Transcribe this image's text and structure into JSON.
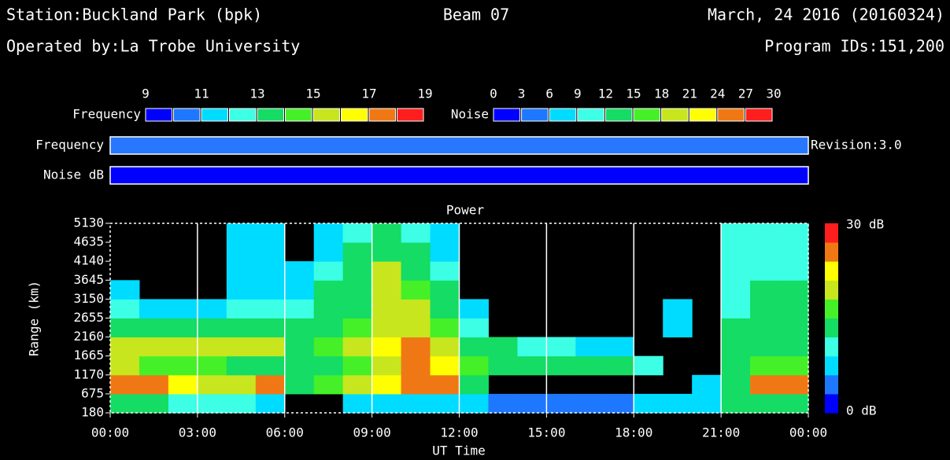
{
  "header": {
    "station": "Station:Buckland Park (bpk)",
    "beam": "Beam 07",
    "date": "March, 24 2016 (20160324)",
    "operator": "Operated by:La Trobe University",
    "programs": "Program IDs:151,200",
    "revision": "Revision:3.0"
  },
  "scales": {
    "colors": [
      "#0000ff",
      "#1e78ff",
      "#00dcff",
      "#3cffe6",
      "#14dc64",
      "#46f028",
      "#c8e61e",
      "#ffff00",
      "#f07814",
      "#ff1e1e"
    ],
    "frequency": {
      "name": "Frequency",
      "ticks": [
        9,
        11,
        13,
        15,
        17,
        19
      ]
    },
    "noise": {
      "name": "Noise",
      "ticks": [
        0,
        3,
        6,
        9,
        12,
        15,
        18,
        21,
        24,
        27,
        30
      ]
    }
  },
  "bars": [
    {
      "name": "Frequency",
      "color": "#2878ff"
    },
    {
      "name": "Noise dB",
      "color": "#0000ff"
    }
  ],
  "chart_data": {
    "type": "heatmap",
    "title": "Power",
    "xlabel": "UT Time",
    "ylabel": "Range (km)",
    "xlim": [
      0,
      24
    ],
    "ylim": [
      180,
      5130
    ],
    "xticks": [
      {
        "value": 0,
        "label": "00:00"
      },
      {
        "value": 3,
        "label": "03:00"
      },
      {
        "value": 6,
        "label": "06:00"
      },
      {
        "value": 9,
        "label": "09:00"
      },
      {
        "value": 12,
        "label": "12:00"
      },
      {
        "value": 15,
        "label": "15:00"
      },
      {
        "value": 18,
        "label": "18:00"
      },
      {
        "value": 21,
        "label": "21:00"
      },
      {
        "value": 24,
        "label": "00:00"
      }
    ],
    "yticks": [
      180,
      675,
      1170,
      1665,
      2160,
      2655,
      3150,
      3645,
      4140,
      4635,
      5130
    ],
    "grid": true,
    "xbins": [
      0,
      1,
      2,
      3,
      4,
      5,
      6,
      7,
      8,
      9,
      10,
      11,
      12,
      13,
      14,
      15,
      16,
      17,
      18,
      19,
      20,
      21,
      22,
      23,
      24
    ],
    "ybins": [
      180,
      675,
      1170,
      1665,
      2160,
      2655,
      3150,
      3645,
      4140,
      4635,
      5130
    ],
    "zlim": [
      0,
      30
    ],
    "zticks": [
      {
        "value": 30,
        "label": "30 dB"
      },
      {
        "value": 0,
        "label": "0 dB"
      }
    ],
    "z": [
      [
        12,
        12,
        10,
        10,
        10,
        8,
        null,
        null,
        6,
        6,
        6,
        6,
        6,
        5,
        5,
        5,
        5,
        5,
        6,
        6,
        8,
        12,
        14,
        12
      ],
      [
        26,
        24,
        22,
        20,
        20,
        24,
        14,
        16,
        18,
        22,
        24,
        26,
        14,
        null,
        null,
        null,
        null,
        null,
        null,
        null,
        8,
        14,
        26,
        26
      ],
      [
        18,
        16,
        16,
        16,
        14,
        14,
        12,
        14,
        16,
        20,
        24,
        22,
        16,
        12,
        12,
        12,
        12,
        12,
        10,
        null,
        null,
        14,
        16,
        16
      ],
      [
        20,
        20,
        18,
        18,
        18,
        18,
        14,
        16,
        18,
        22,
        24,
        20,
        14,
        12,
        10,
        10,
        8,
        8,
        null,
        null,
        null,
        12,
        14,
        14
      ],
      [
        14,
        14,
        12,
        12,
        12,
        12,
        12,
        14,
        16,
        20,
        20,
        16,
        10,
        null,
        null,
        null,
        null,
        null,
        null,
        8,
        null,
        12,
        12,
        12
      ],
      [
        10,
        8,
        8,
        8,
        10,
        10,
        10,
        12,
        14,
        18,
        18,
        14,
        6,
        null,
        null,
        null,
        null,
        null,
        null,
        6,
        null,
        10,
        12,
        12
      ],
      [
        6,
        null,
        null,
        null,
        8,
        8,
        8,
        12,
        14,
        18,
        16,
        12,
        null,
        null,
        null,
        null,
        null,
        null,
        null,
        null,
        null,
        10,
        12,
        12
      ],
      [
        null,
        null,
        null,
        null,
        6,
        6,
        6,
        10,
        14,
        18,
        14,
        10,
        null,
        null,
        null,
        null,
        null,
        null,
        null,
        null,
        null,
        10,
        10,
        10
      ],
      [
        null,
        null,
        null,
        null,
        6,
        6,
        null,
        8,
        12,
        14,
        12,
        8,
        null,
        null,
        null,
        null,
        null,
        null,
        null,
        null,
        null,
        10,
        10,
        10
      ],
      [
        null,
        null,
        null,
        null,
        6,
        6,
        null,
        6,
        10,
        12,
        10,
        6,
        null,
        null,
        null,
        null,
        null,
        null,
        null,
        null,
        null,
        10,
        10,
        10
      ]
    ]
  }
}
